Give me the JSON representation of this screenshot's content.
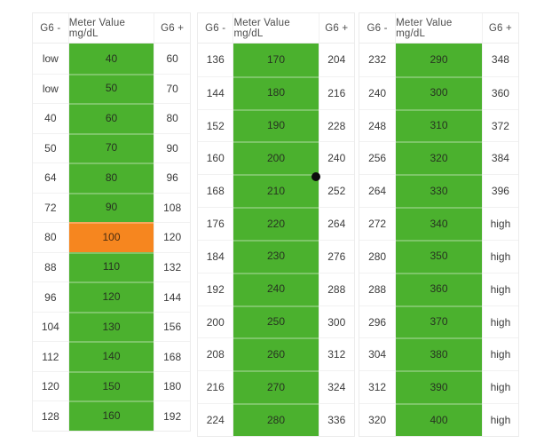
{
  "colors": {
    "green": "#4bb12e",
    "orange": "#f6861f",
    "dot": "#0d0d0d",
    "table_border": "#ececec"
  },
  "marker": {
    "name": "black-dot-annotation"
  },
  "tables": [
    {
      "headers": {
        "minus": "G6 -",
        "meter": "Meter Value mg/dL",
        "plus": "G6 +"
      },
      "rows": [
        {
          "g6_minus": "low",
          "meter": "40",
          "g6_plus": "60",
          "state": "green"
        },
        {
          "g6_minus": "low",
          "meter": "50",
          "g6_plus": "70",
          "state": "green"
        },
        {
          "g6_minus": "40",
          "meter": "60",
          "g6_plus": "80",
          "state": "green"
        },
        {
          "g6_minus": "50",
          "meter": "70",
          "g6_plus": "90",
          "state": "green"
        },
        {
          "g6_minus": "64",
          "meter": "80",
          "g6_plus": "96",
          "state": "green"
        },
        {
          "g6_minus": "72",
          "meter": "90",
          "g6_plus": "108",
          "state": "green"
        },
        {
          "g6_minus": "80",
          "meter": "100",
          "g6_plus": "120",
          "state": "orange"
        },
        {
          "g6_minus": "88",
          "meter": "110",
          "g6_plus": "132",
          "state": "green"
        },
        {
          "g6_minus": "96",
          "meter": "120",
          "g6_plus": "144",
          "state": "green"
        },
        {
          "g6_minus": "104",
          "meter": "130",
          "g6_plus": "156",
          "state": "green"
        },
        {
          "g6_minus": "112",
          "meter": "140",
          "g6_plus": "168",
          "state": "green"
        },
        {
          "g6_minus": "120",
          "meter": "150",
          "g6_plus": "180",
          "state": "green"
        },
        {
          "g6_minus": "128",
          "meter": "160",
          "g6_plus": "192",
          "state": "green"
        }
      ]
    },
    {
      "headers": {
        "minus": "G6 -",
        "meter": "Meter Value mg/dL",
        "plus": "G6 +"
      },
      "rows": [
        {
          "g6_minus": "136",
          "meter": "170",
          "g6_plus": "204",
          "state": "green"
        },
        {
          "g6_minus": "144",
          "meter": "180",
          "g6_plus": "216",
          "state": "green"
        },
        {
          "g6_minus": "152",
          "meter": "190",
          "g6_plus": "228",
          "state": "green"
        },
        {
          "g6_minus": "160",
          "meter": "200",
          "g6_plus": "240",
          "state": "green"
        },
        {
          "g6_minus": "168",
          "meter": "210",
          "g6_plus": "252",
          "state": "green"
        },
        {
          "g6_minus": "176",
          "meter": "220",
          "g6_plus": "264",
          "state": "green"
        },
        {
          "g6_minus": "184",
          "meter": "230",
          "g6_plus": "276",
          "state": "green"
        },
        {
          "g6_minus": "192",
          "meter": "240",
          "g6_plus": "288",
          "state": "green"
        },
        {
          "g6_minus": "200",
          "meter": "250",
          "g6_plus": "300",
          "state": "green"
        },
        {
          "g6_minus": "208",
          "meter": "260",
          "g6_plus": "312",
          "state": "green"
        },
        {
          "g6_minus": "216",
          "meter": "270",
          "g6_plus": "324",
          "state": "green"
        },
        {
          "g6_minus": "224",
          "meter": "280",
          "g6_plus": "336",
          "state": "green"
        }
      ]
    },
    {
      "headers": {
        "minus": "G6 -",
        "meter": "Meter Value mg/dL",
        "plus": "G6 +"
      },
      "rows": [
        {
          "g6_minus": "232",
          "meter": "290",
          "g6_plus": "348",
          "state": "green"
        },
        {
          "g6_minus": "240",
          "meter": "300",
          "g6_plus": "360",
          "state": "green"
        },
        {
          "g6_minus": "248",
          "meter": "310",
          "g6_plus": "372",
          "state": "green"
        },
        {
          "g6_minus": "256",
          "meter": "320",
          "g6_plus": "384",
          "state": "green"
        },
        {
          "g6_minus": "264",
          "meter": "330",
          "g6_plus": "396",
          "state": "green"
        },
        {
          "g6_minus": "272",
          "meter": "340",
          "g6_plus": "high",
          "state": "green"
        },
        {
          "g6_minus": "280",
          "meter": "350",
          "g6_plus": "high",
          "state": "green"
        },
        {
          "g6_minus": "288",
          "meter": "360",
          "g6_plus": "high",
          "state": "green"
        },
        {
          "g6_minus": "296",
          "meter": "370",
          "g6_plus": "high",
          "state": "green"
        },
        {
          "g6_minus": "304",
          "meter": "380",
          "g6_plus": "high",
          "state": "green"
        },
        {
          "g6_minus": "312",
          "meter": "390",
          "g6_plus": "high",
          "state": "green"
        },
        {
          "g6_minus": "320",
          "meter": "400",
          "g6_plus": "high",
          "state": "green"
        }
      ]
    }
  ]
}
